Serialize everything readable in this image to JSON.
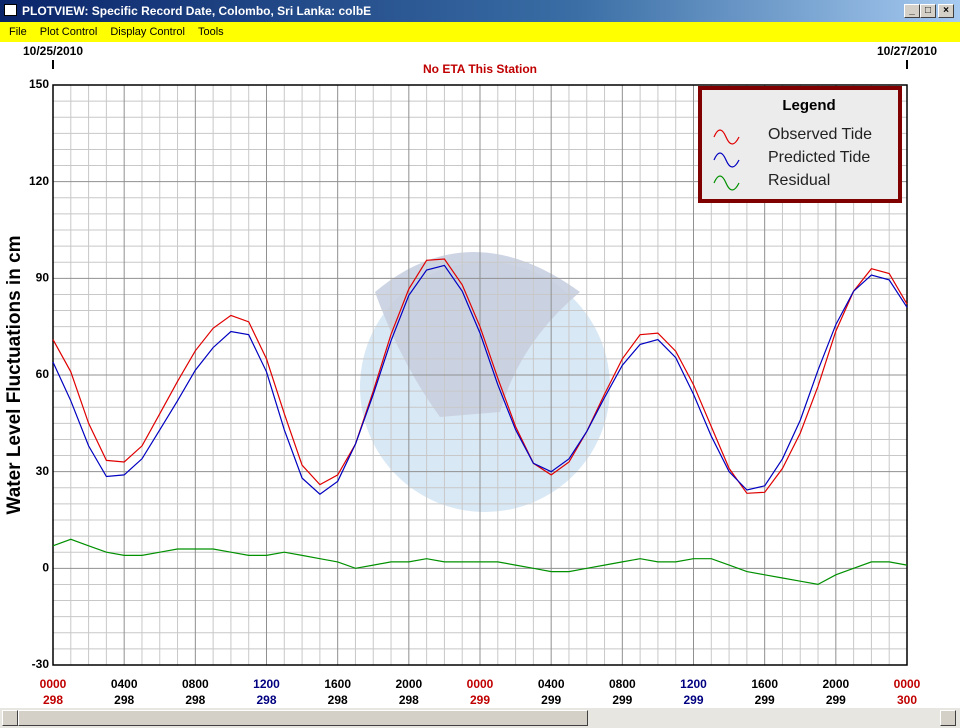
{
  "window": {
    "title": "PLOTVIEW: Specific Record Date, Colombo, Sri Lanka: colbE",
    "menu": [
      "File",
      "Plot Control",
      "Display Control",
      "Tools"
    ]
  },
  "chart_data": {
    "type": "line",
    "subtitle": "No ETA This Station",
    "y_label": "Water Level Fluctuations in cm",
    "date_start": "10/25/2010",
    "date_end": "10/27/2010",
    "legend_title": "Legend",
    "legend_position": "upper right",
    "grid": true,
    "x": [
      0,
      1,
      2,
      3,
      4,
      5,
      6,
      7,
      8,
      9,
      10,
      11,
      12,
      13,
      14,
      15,
      16,
      17,
      18,
      19,
      20,
      21,
      22,
      23,
      24,
      25,
      26,
      27,
      28,
      29,
      30,
      31,
      32,
      33,
      34,
      35,
      36,
      37,
      38,
      39,
      40,
      41,
      42,
      43,
      44,
      45,
      46,
      47,
      48
    ],
    "xlim": [
      0,
      48
    ],
    "xticks": [
      {
        "value": 0,
        "label": "0000",
        "day": "298",
        "color": "#c00000"
      },
      {
        "value": 4,
        "label": "0400",
        "day": "298",
        "color": "#000000"
      },
      {
        "value": 8,
        "label": "0800",
        "day": "298",
        "color": "#000000"
      },
      {
        "value": 12,
        "label": "1200",
        "day": "298",
        "color": "#000080"
      },
      {
        "value": 16,
        "label": "1600",
        "day": "298",
        "color": "#000000"
      },
      {
        "value": 20,
        "label": "2000",
        "day": "298",
        "color": "#000000"
      },
      {
        "value": 24,
        "label": "0000",
        "day": "299",
        "color": "#c00000"
      },
      {
        "value": 28,
        "label": "0400",
        "day": "299",
        "color": "#000000"
      },
      {
        "value": 32,
        "label": "0800",
        "day": "299",
        "color": "#000000"
      },
      {
        "value": 36,
        "label": "1200",
        "day": "299",
        "color": "#000080"
      },
      {
        "value": 40,
        "label": "1600",
        "day": "299",
        "color": "#000000"
      },
      {
        "value": 44,
        "label": "2000",
        "day": "299",
        "color": "#000000"
      },
      {
        "value": 48,
        "label": "0000",
        "day": "300",
        "color": "#c00000"
      }
    ],
    "ylim": [
      -30,
      150
    ],
    "yticks": [
      -30,
      0,
      30,
      60,
      90,
      120,
      150
    ],
    "series": [
      {
        "name": "Observed Tide",
        "color": "#e00000",
        "values": [
          71,
          61,
          45,
          33.5,
          33,
          38,
          48,
          58,
          67.5,
          74.5,
          78.5,
          76.5,
          65,
          48,
          32,
          26,
          29,
          38.6,
          55,
          72.6,
          86.7,
          95.6,
          96,
          88,
          75,
          59,
          44,
          32.6,
          29,
          33,
          42.5,
          54,
          65,
          72.5,
          73,
          67.4,
          57,
          44,
          31,
          23.3,
          23.6,
          31,
          42,
          56.5,
          73.6,
          86,
          93,
          91.5,
          82
        ]
      },
      {
        "name": "Predicted Tide",
        "color": "#0000c0",
        "values": [
          64,
          52,
          38,
          28.5,
          29,
          34,
          43,
          52,
          61.5,
          68.5,
          73.5,
          72.5,
          61,
          43,
          28,
          23,
          27,
          38.6,
          54,
          70.6,
          84.7,
          92.6,
          94,
          86,
          73,
          57,
          43,
          32.6,
          30,
          34,
          42.5,
          53,
          63,
          69.5,
          71,
          65.4,
          54,
          41,
          30,
          24.3,
          25.6,
          34,
          46,
          61.5,
          75.6,
          86,
          91,
          89.5,
          81
        ]
      },
      {
        "name": "Residual",
        "color": "#009000",
        "values": [
          7,
          9,
          7,
          5,
          4,
          4,
          5,
          6,
          6,
          6,
          5,
          4,
          4,
          5,
          4,
          3,
          2,
          0,
          1,
          2,
          2,
          3,
          2,
          2,
          2,
          2,
          1,
          0,
          -1,
          -1,
          0,
          1,
          2,
          3,
          2,
          2,
          3,
          3,
          1,
          -1,
          -2,
          -3,
          -4,
          -5,
          -2,
          0,
          2,
          2,
          1
        ]
      }
    ]
  }
}
